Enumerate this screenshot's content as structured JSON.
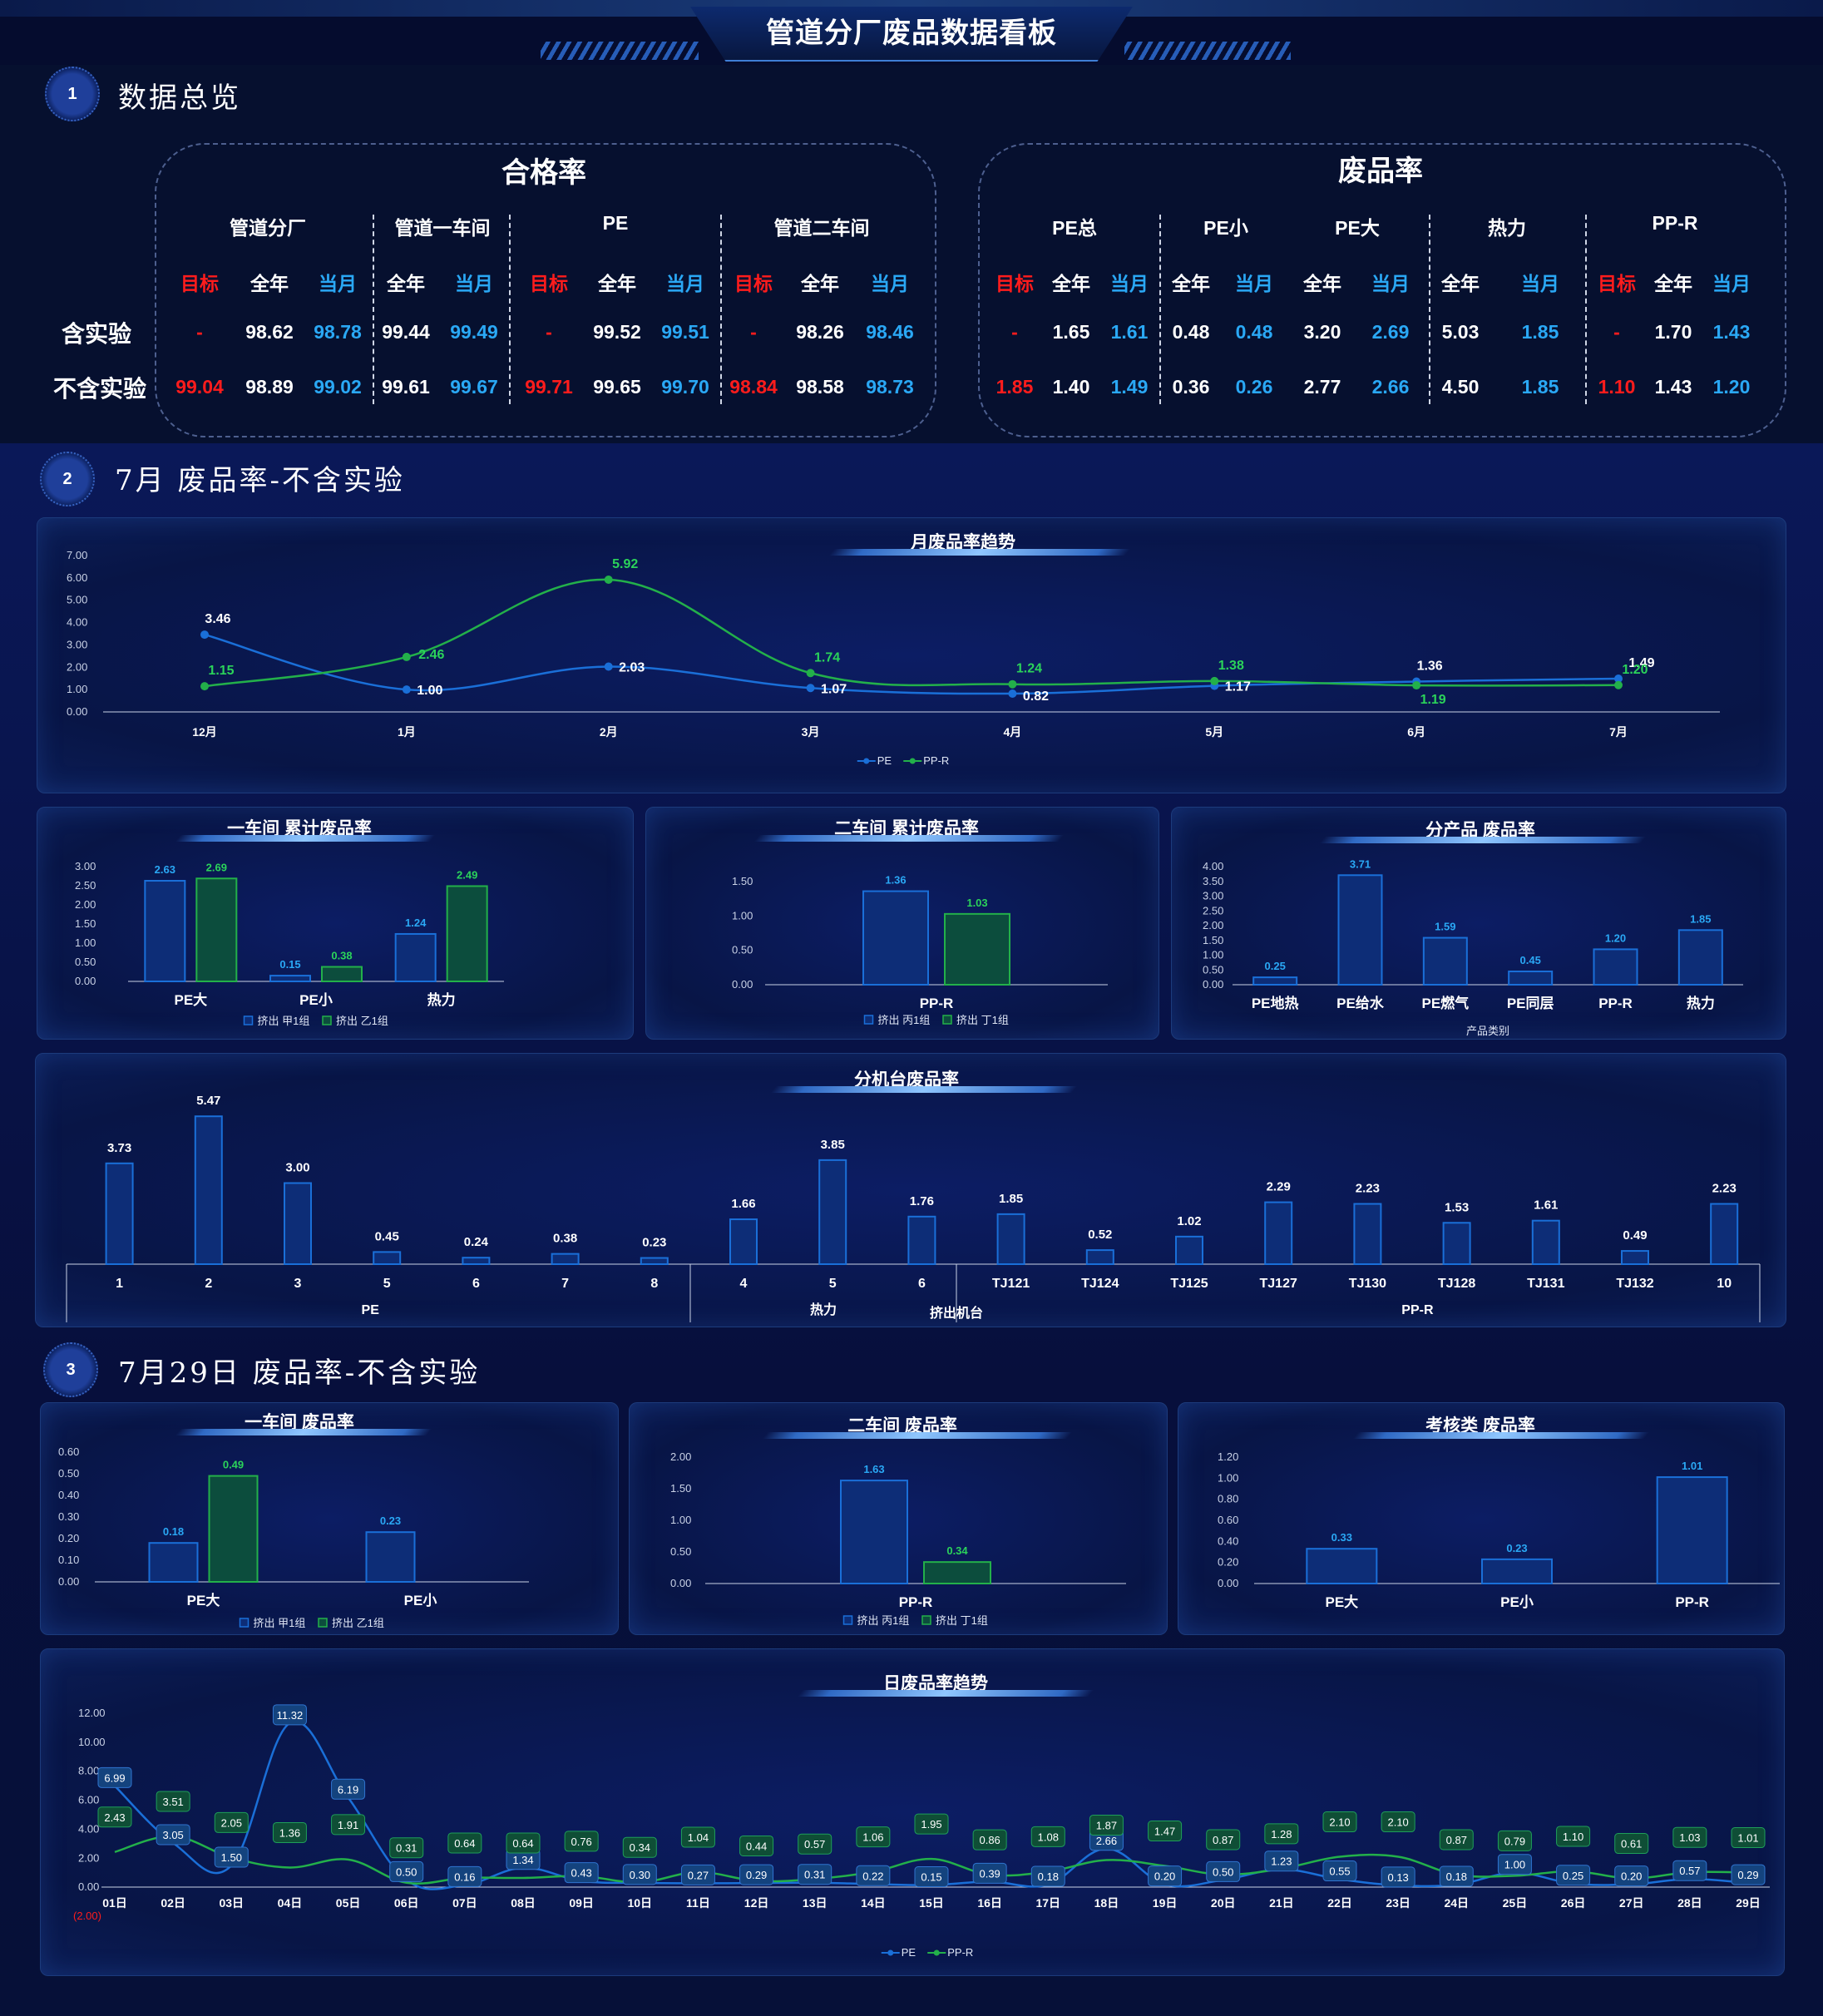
{
  "title": "管道分厂废品数据看板",
  "sections": [
    {
      "num": "1",
      "title": "数据总览"
    },
    {
      "num": "2",
      "title": "7月 废品率-不含实验"
    },
    {
      "num": "3",
      "title": "7月29日 废品率-不含实验"
    }
  ],
  "overview": {
    "row_labels": [
      "含实验",
      "不含实验"
    ],
    "pass_rate": {
      "title": "合格率",
      "groups": [
        {
          "name": "管道分厂",
          "cols": [
            "目标",
            "全年",
            "当月"
          ],
          "rows": [
            [
              "-",
              "98.62",
              "98.78"
            ],
            [
              "99.04",
              "98.89",
              "99.02"
            ]
          ]
        },
        {
          "name": "管道一车间",
          "cols": [
            "全年",
            "当月"
          ],
          "rows": [
            [
              "99.44",
              "99.49"
            ],
            [
              "99.61",
              "99.67"
            ]
          ]
        },
        {
          "name": "PE",
          "cols": [
            "目标",
            "全年",
            "当月"
          ],
          "rows": [
            [
              "-",
              "99.52",
              "99.51"
            ],
            [
              "99.71",
              "99.65",
              "99.70"
            ]
          ]
        },
        {
          "name": "管道二车间",
          "cols": [
            "目标",
            "全年",
            "当月"
          ],
          "rows": [
            [
              "-",
              "98.26",
              "98.46"
            ],
            [
              "98.84",
              "98.58",
              "98.73"
            ]
          ]
        }
      ]
    },
    "scrap_rate": {
      "title": "废品率",
      "groups": [
        {
          "name": "PE总",
          "cols": [
            "目标",
            "全年",
            "当月"
          ],
          "rows": [
            [
              "-",
              "1.65",
              "1.61"
            ],
            [
              "1.85",
              "1.40",
              "1.49"
            ]
          ]
        },
        {
          "name": "PE小",
          "cols": [
            "全年",
            "当月"
          ],
          "rows": [
            [
              "0.48",
              "0.48"
            ],
            [
              "0.36",
              "0.26"
            ]
          ]
        },
        {
          "name": "PE大",
          "cols": [
            "全年",
            "当月"
          ],
          "rows": [
            [
              "3.20",
              "2.69"
            ],
            [
              "2.77",
              "2.66"
            ]
          ]
        },
        {
          "name": "热力",
          "cols": [
            "全年",
            "当月"
          ],
          "rows": [
            [
              "5.03",
              "1.85"
            ],
            [
              "4.50",
              "1.85"
            ]
          ]
        },
        {
          "name": "PP-R",
          "cols": [
            "目标",
            "全年",
            "当月"
          ],
          "rows": [
            [
              "-",
              "1.70",
              "1.43"
            ],
            [
              "1.10",
              "1.43",
              "1.20"
            ]
          ]
        }
      ]
    }
  },
  "colors": {
    "blue": "#1a6fd8",
    "green": "#23b04a",
    "bar_blue_fill": "#0d2d77",
    "bar_green_fill": "#0c4d3d",
    "red": "#ff1c1c",
    "label_blue": "#2aa8f5",
    "label_green": "#2bd35a"
  },
  "chart_data": [
    {
      "id": "monthly",
      "type": "line",
      "title": "月废品率趋势",
      "categories": [
        "12月",
        "1月",
        "2月",
        "3月",
        "4月",
        "5月",
        "6月",
        "7月"
      ],
      "series": [
        {
          "name": "PE",
          "values": [
            3.46,
            1.0,
            2.03,
            1.07,
            0.82,
            1.17,
            1.36,
            1.49
          ]
        },
        {
          "name": "PP-R",
          "values": [
            1.15,
            2.46,
            5.92,
            1.74,
            1.24,
            1.38,
            1.19,
            1.2
          ]
        }
      ],
      "yticks": [
        "7.00",
        "6.00",
        "5.00",
        "4.00",
        "3.00",
        "2.00",
        "1.00",
        "0.00"
      ],
      "ylim": [
        0,
        7
      ],
      "legend": "bottom"
    },
    {
      "id": "ws1",
      "type": "bar",
      "title": "一车间 累计废品率",
      "categories": [
        "PE大",
        "PE小",
        "热力"
      ],
      "series": [
        {
          "name": "挤出 甲1组",
          "values": [
            2.63,
            0.15,
            1.24
          ]
        },
        {
          "name": "挤出 乙1组",
          "values": [
            2.69,
            0.38,
            2.49
          ]
        }
      ],
      "yticks": [
        "3.00",
        "2.50",
        "2.00",
        "1.50",
        "1.00",
        "0.50",
        "0.00"
      ],
      "ylim": [
        0,
        3
      ]
    },
    {
      "id": "ws2",
      "type": "bar",
      "title": "二车间 累计废品率",
      "categories": [
        "PP-R"
      ],
      "series": [
        {
          "name": "挤出 丙1组",
          "values": [
            1.36
          ]
        },
        {
          "name": "挤出 丁1组",
          "values": [
            1.03
          ]
        }
      ],
      "yticks": [
        "1.50",
        "1.00",
        "0.50",
        "0.00"
      ],
      "ylim": [
        0,
        1.5
      ]
    },
    {
      "id": "product",
      "type": "bar",
      "title": "分产品 废品率",
      "categories": [
        "PE地热",
        "PE给水",
        "PE燃气",
        "PE同层",
        "PP-R",
        "热力"
      ],
      "series": [
        {
          "name": "",
          "values": [
            0.25,
            3.71,
            1.59,
            0.45,
            1.2,
            1.85
          ]
        }
      ],
      "xlabel": "产品类别",
      "yticks": [
        "4.00",
        "3.50",
        "3.00",
        "2.50",
        "2.00",
        "1.50",
        "1.00",
        "0.50",
        "0.00"
      ],
      "ylim": [
        0,
        4
      ]
    },
    {
      "id": "machine",
      "type": "bar",
      "title": "分机台废品率",
      "categories": [
        "1",
        "2",
        "3",
        "5",
        "6",
        "7",
        "8",
        "4",
        "5",
        "6",
        "TJ121",
        "TJ124",
        "TJ125",
        "TJ127",
        "TJ130",
        "TJ128",
        "TJ131",
        "TJ132",
        "10"
      ],
      "values": [
        3.73,
        5.47,
        3.0,
        0.45,
        0.24,
        0.38,
        0.23,
        1.66,
        3.85,
        1.76,
        1.85,
        0.52,
        1.02,
        2.29,
        2.23,
        1.53,
        1.61,
        0.49,
        2.23
      ],
      "groups": [
        {
          "name": "PE",
          "from": 0,
          "to": 6
        },
        {
          "name": "热力",
          "from": 7,
          "to": 9
        },
        {
          "name": "PP-R",
          "from": 10,
          "to": 18
        }
      ],
      "xlabel": "挤出机台",
      "ylim": [
        0,
        6
      ]
    },
    {
      "id": "d1",
      "type": "bar",
      "title": "一车间 废品率",
      "categories": [
        "PE大",
        "PE小"
      ],
      "series": [
        {
          "name": "挤出 甲1组",
          "values": [
            0.18,
            0.23
          ]
        },
        {
          "name": "挤出 乙1组",
          "values": [
            0.49,
            null
          ]
        }
      ],
      "yticks": [
        "0.60",
        "0.50",
        "0.40",
        "0.30",
        "0.20",
        "0.10",
        "0.00"
      ],
      "ylim": [
        0,
        0.6
      ]
    },
    {
      "id": "d2",
      "type": "bar",
      "title": "二车间 废品率",
      "categories": [
        "PP-R"
      ],
      "series": [
        {
          "name": "挤出 丙1组",
          "values": [
            1.63
          ]
        },
        {
          "name": "挤出 丁1组",
          "values": [
            0.34
          ]
        }
      ],
      "yticks": [
        "2.00",
        "1.50",
        "1.00",
        "0.50",
        "0.00"
      ],
      "ylim": [
        0,
        2
      ]
    },
    {
      "id": "d3",
      "type": "bar",
      "title": "考核类 废品率",
      "categories": [
        "PE大",
        "PE小",
        "PP-R"
      ],
      "series": [
        {
          "name": "",
          "values": [
            0.33,
            0.23,
            1.01
          ]
        }
      ],
      "yticks": [
        "1.20",
        "1.00",
        "0.80",
        "0.60",
        "0.40",
        "0.20",
        "0.00"
      ],
      "ylim": [
        0,
        1.2
      ]
    },
    {
      "id": "daily",
      "type": "line",
      "title": "日废品率趋势",
      "categories": [
        "01日",
        "02日",
        "03日",
        "04日",
        "05日",
        "06日",
        "07日",
        "08日",
        "09日",
        "10日",
        "11日",
        "12日",
        "13日",
        "14日",
        "15日",
        "16日",
        "17日",
        "18日",
        "19日",
        "20日",
        "21日",
        "22日",
        "23日",
        "24日",
        "25日",
        "26日",
        "27日",
        "28日",
        "29日"
      ],
      "series": [
        {
          "name": "PE",
          "values": [
            6.99,
            3.05,
            1.5,
            11.32,
            6.19,
            0.5,
            0.16,
            1.34,
            0.43,
            0.3,
            0.27,
            0.29,
            0.31,
            0.22,
            0.15,
            0.39,
            0.18,
            2.66,
            0.2,
            0.5,
            1.23,
            0.55,
            0.13,
            0.18,
            1.0,
            0.25,
            0.2,
            0.57,
            0.29
          ]
        },
        {
          "name": "PP-R",
          "values": [
            2.43,
            3.51,
            2.05,
            1.36,
            1.91,
            0.31,
            0.64,
            0.64,
            0.76,
            0.34,
            1.04,
            0.44,
            0.57,
            1.06,
            1.95,
            0.86,
            1.08,
            1.87,
            1.47,
            0.87,
            1.28,
            2.1,
            2.1,
            0.87,
            0.79,
            1.1,
            0.61,
            1.03,
            1.01
          ]
        }
      ],
      "yticks": [
        "12.00",
        "10.00",
        "8.00",
        "6.00",
        "4.00",
        "2.00",
        "0.00",
        "(2.00)"
      ],
      "ylim": [
        -2,
        12
      ],
      "legend": "bottom"
    }
  ]
}
